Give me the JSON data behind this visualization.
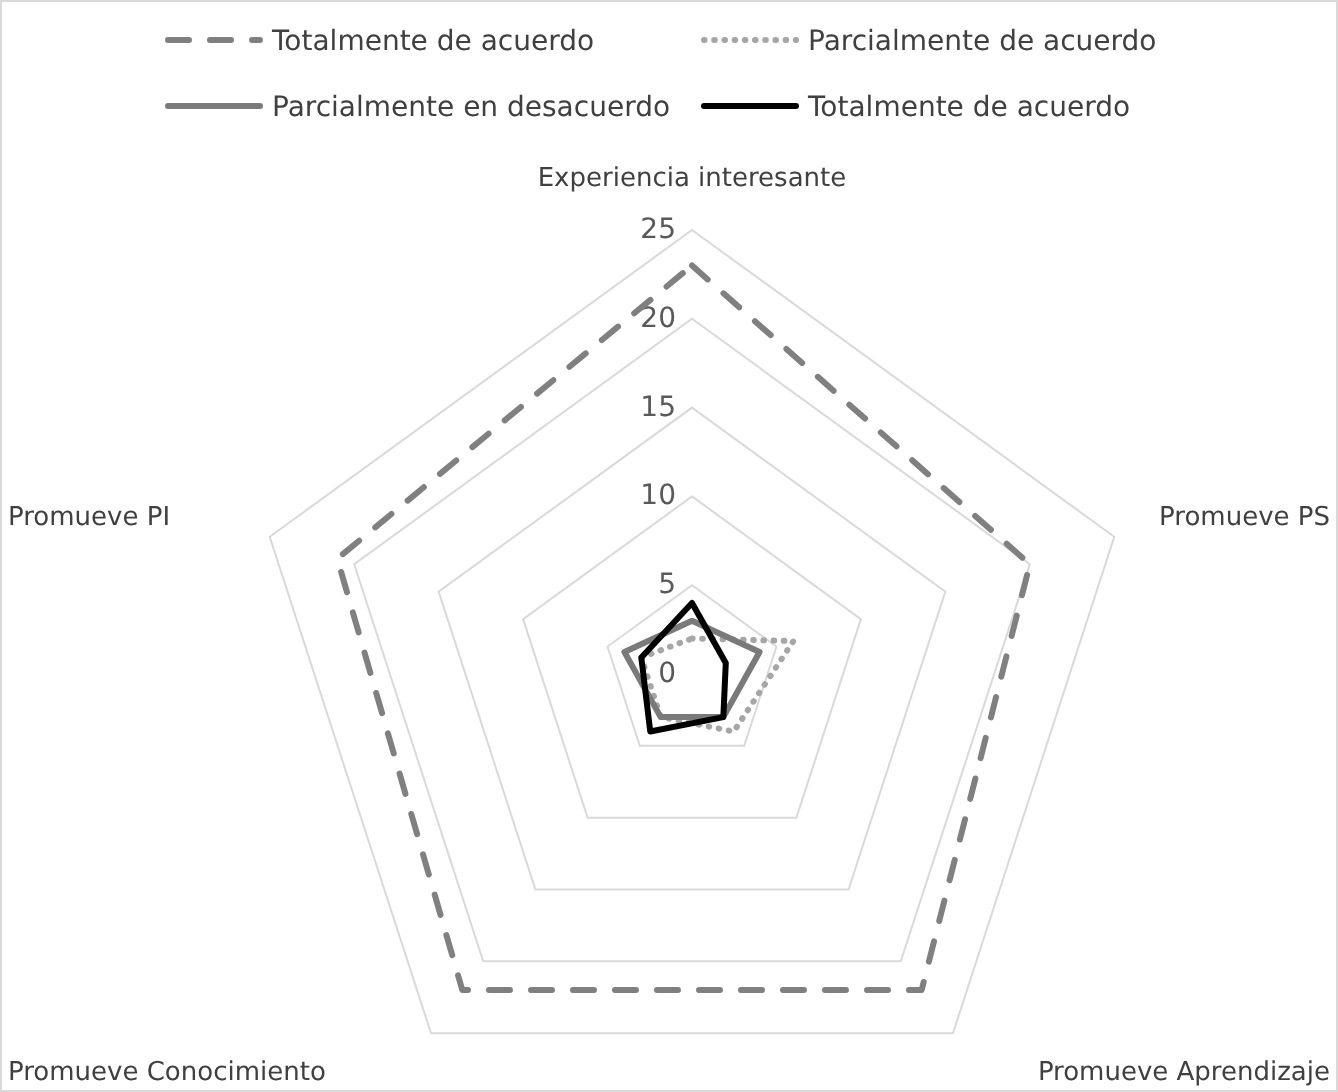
{
  "chart_data": {
    "type": "radar",
    "categories": [
      "Experiencia interesante",
      "Promueve PS",
      "Promueve Aprendizaje",
      "Promueve Conocimiento",
      "Promueve PI"
    ],
    "ylim": [
      0,
      25
    ],
    "yticks": [
      0,
      5,
      10,
      15,
      20,
      25
    ],
    "grid": true,
    "legend": "top",
    "series": [
      {
        "name": "Totalmente de acuerdo",
        "color": "#808080",
        "line_style": "dashed",
        "values": [
          23,
          20,
          22,
          22,
          21
        ]
      },
      {
        "name": "Parcialmente de acuerdo",
        "color": "#a6a6a6",
        "line_style": "dotted",
        "values": [
          2,
          6,
          4,
          3,
          3
        ]
      },
      {
        "name": "Parcialmente en desacuerdo",
        "color": "#7a7a7a",
        "line_style": "solid",
        "values": [
          3,
          4,
          3,
          3,
          4
        ]
      },
      {
        "name": "Totalmente de acuerdo",
        "color": "#000000",
        "line_style": "solid",
        "values": [
          4,
          2,
          3,
          4,
          3
        ]
      }
    ]
  }
}
